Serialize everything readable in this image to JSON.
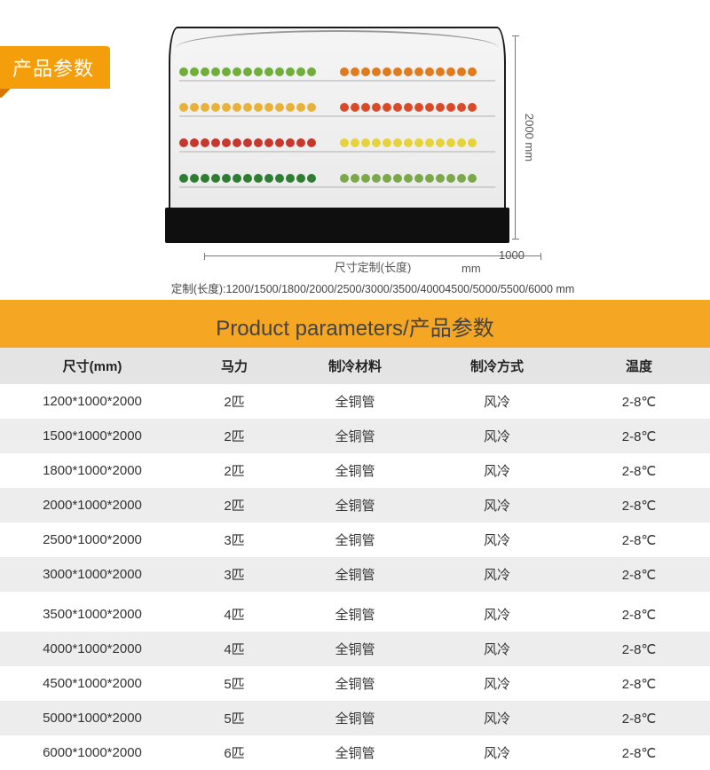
{
  "tab_label": "产品参数",
  "diagram": {
    "height_label": "2000 mm",
    "width_label": "尺寸定制(长度)",
    "depth_label": "1000 mm",
    "custom_note": "定制(长度):1200/1500/1800/2000/2500/3000/3500/40004500/5000/5500/6000  mm",
    "shelf_colors": {
      "row1_left": "#6fae3a",
      "row1_right": "#e07a1f",
      "row2_left": "#e8b23a",
      "row2_right": "#d94a2a",
      "row3_left": "#c6382e",
      "row3_right": "#e6d23a",
      "row4_left": "#2e7d32",
      "row4_right": "#7aa84a"
    }
  },
  "header_title": "Product parameters/产品参数",
  "columns": [
    "尺寸(mm)",
    "马力",
    "制冷材料",
    "制冷方式",
    "温度"
  ],
  "rows": [
    {
      "size": "1200*1000*2000",
      "hp": "2匹",
      "mat": "全铜管",
      "cool": "风冷",
      "temp": "2-8℃",
      "alt": false
    },
    {
      "size": "1500*1000*2000",
      "hp": "2匹",
      "mat": "全铜管",
      "cool": "风冷",
      "temp": "2-8℃",
      "alt": true
    },
    {
      "size": "1800*1000*2000",
      "hp": "2匹",
      "mat": "全铜管",
      "cool": "风冷",
      "temp": "2-8℃",
      "alt": false
    },
    {
      "size": "2000*1000*2000",
      "hp": "2匹",
      "mat": "全铜管",
      "cool": "风冷",
      "temp": "2-8℃",
      "alt": true
    },
    {
      "size": "2500*1000*2000",
      "hp": "3匹",
      "mat": "全铜管",
      "cool": "风冷",
      "temp": "2-8℃",
      "alt": false
    },
    {
      "size": "3000*1000*2000",
      "hp": "3匹",
      "mat": "全铜管",
      "cool": "风冷",
      "temp": "2-8℃",
      "alt": true
    },
    {
      "size": "3500*1000*2000",
      "hp": "4匹",
      "mat": "全铜管",
      "cool": "风冷",
      "temp": "2-8℃",
      "alt": false,
      "gap": true
    },
    {
      "size": "4000*1000*2000",
      "hp": "4匹",
      "mat": "全铜管",
      "cool": "风冷",
      "temp": "2-8℃",
      "alt": true
    },
    {
      "size": "4500*1000*2000",
      "hp": "5匹",
      "mat": "全铜管",
      "cool": "风冷",
      "temp": "2-8℃",
      "alt": false
    },
    {
      "size": "5000*1000*2000",
      "hp": "5匹",
      "mat": "全铜管",
      "cool": "风冷",
      "temp": "2-8℃",
      "alt": true
    },
    {
      "size": "6000*1000*2000",
      "hp": "6匹",
      "mat": "全铜管",
      "cool": "风冷",
      "temp": "2-8℃",
      "alt": false
    }
  ],
  "colors": {
    "accent": "#f5a623",
    "tab": "#f59e0b",
    "th_bg": "#e4e4e4",
    "alt_bg": "#ededed"
  }
}
